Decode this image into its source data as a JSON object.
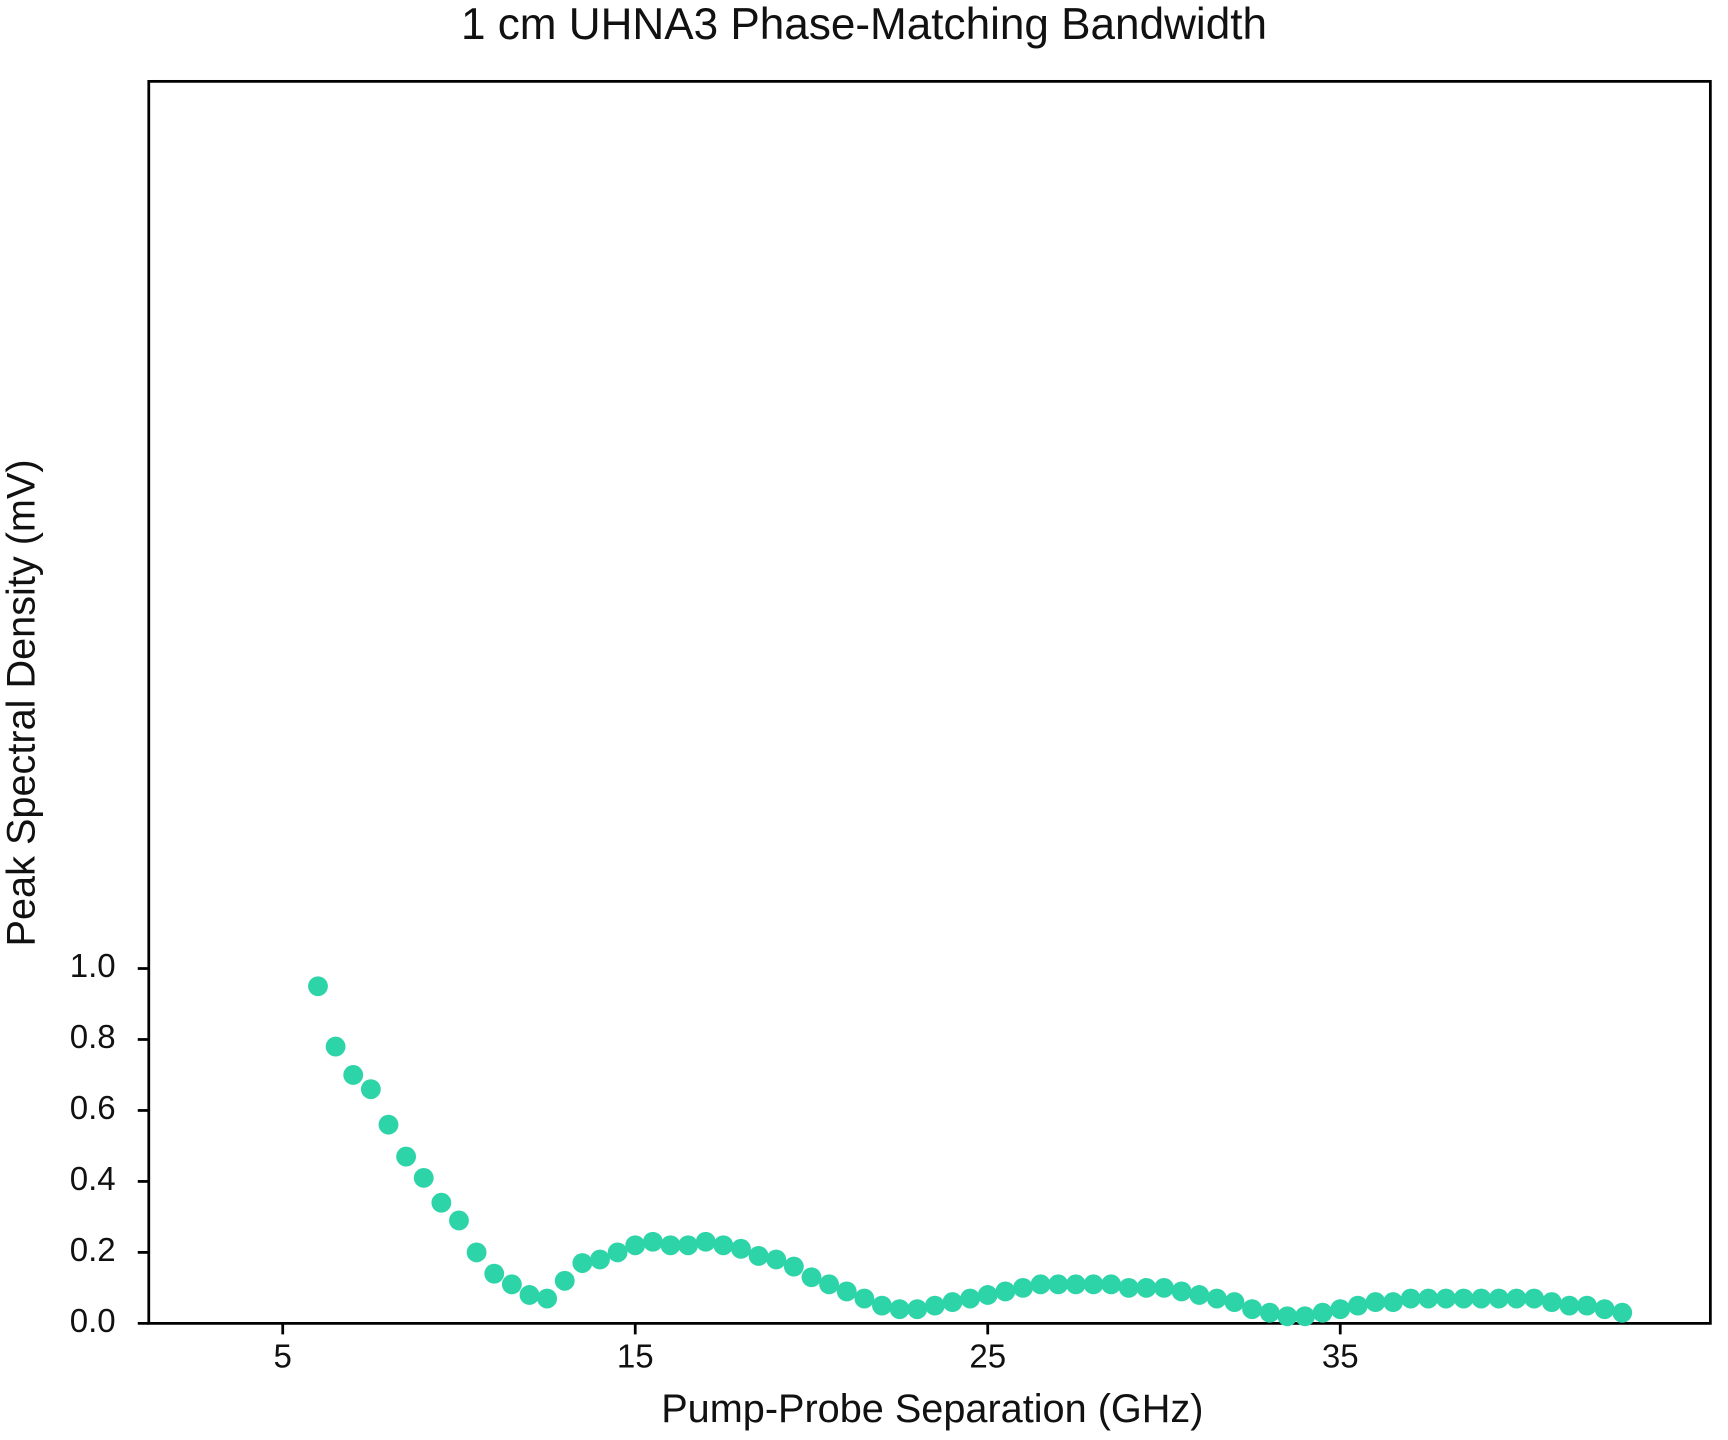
{
  "chart_data": {
    "type": "scatter",
    "title": "1 cm UHNA3 Phase-Matching Bandwidth",
    "x_label": "Pump-Probe Separation (GHz)",
    "y_label": "Peak Spectral Density (mV)",
    "color": "#2dd4a8",
    "xlim": [
      1.2,
      45.5
    ],
    "ylim": [
      0,
      3.5
    ],
    "xticks": [
      5,
      15,
      25,
      35
    ],
    "yticks": [
      {
        "value": 0,
        "label": "0.0"
      },
      0.2,
      0.4,
      0.6,
      0.8,
      {
        "value": 1,
        "label": "1.0"
      }
    ],
    "grid": false,
    "x": [
      6,
      6.5,
      7,
      7.5,
      8,
      8.5,
      9,
      9.5,
      10,
      10.5,
      11,
      11.5,
      12,
      12.5,
      13,
      13.5,
      14,
      14.5,
      15,
      15.5,
      16,
      16.5,
      17,
      17.5,
      18,
      18.5,
      19,
      19.5,
      20,
      20.5,
      21,
      21.5,
      22,
      22.5,
      23,
      23.5,
      24,
      24.5,
      25,
      25.5,
      26,
      26.5,
      27,
      27.5,
      28,
      28.5,
      29,
      29.5,
      30,
      30.5,
      31,
      31.5,
      32,
      32.5,
      33,
      33.5,
      34,
      34.5,
      35,
      35.5,
      36,
      36.5,
      37,
      37.5,
      38,
      38.5,
      39,
      39.5,
      40,
      40.5,
      41,
      41.5,
      42,
      42.5,
      43
    ],
    "values": [
      0.95,
      0.78,
      0.7,
      0.66,
      0.56,
      0.47,
      0.41,
      0.34,
      0.29,
      0.2,
      0.14,
      0.11,
      0.08,
      0.07,
      0.12,
      0.17,
      0.18,
      0.2,
      0.22,
      0.23,
      0.22,
      0.22,
      0.23,
      0.22,
      0.21,
      0.19,
      0.18,
      0.16,
      0.13,
      0.11,
      0.09,
      0.07,
      0.05,
      0.04,
      0.04,
      0.05,
      0.06,
      0.07,
      0.08,
      0.09,
      0.1,
      0.11,
      0.11,
      0.11,
      0.11,
      0.11,
      0.1,
      0.1,
      0.1,
      0.09,
      0.08,
      0.07,
      0.06,
      0.04,
      0.03,
      0.02,
      0.02,
      0.03,
      0.04,
      0.05,
      0.06,
      0.06,
      0.07,
      0.07,
      0.07,
      0.07,
      0.07,
      0.07,
      0.07,
      0.07,
      0.06,
      0.05,
      0.05,
      0.04,
      0.03
    ]
  }
}
